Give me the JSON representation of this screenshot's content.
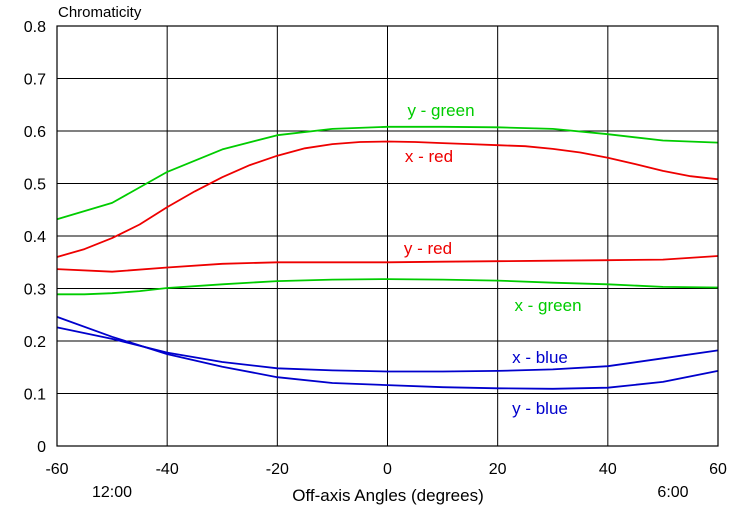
{
  "chart_data": {
    "type": "line",
    "title": "",
    "ylabel": "Chromaticity",
    "xlabel": "Off-axis Angles (degrees)",
    "xlim": [
      -60,
      60
    ],
    "ylim": [
      0,
      0.8
    ],
    "x_ticks": [
      "-60",
      "-40",
      "-20",
      "0",
      "20",
      "40",
      "60"
    ],
    "y_ticks": [
      "0",
      "0.1",
      "0.2",
      "0.3",
      "0.4",
      "0.5",
      "0.6",
      "0.7",
      "0.8"
    ],
    "grid": true,
    "clock_labels": {
      "left": "12:00",
      "right": "6:00"
    },
    "series": [
      {
        "name": "y - green",
        "color": "#00cc00",
        "x": [
          -60,
          -50,
          -40,
          -30,
          -20,
          -10,
          0,
          10,
          20,
          30,
          40,
          50,
          60
        ],
        "y": [
          0.432,
          0.463,
          0.522,
          0.565,
          0.592,
          0.604,
          0.608,
          0.608,
          0.607,
          0.604,
          0.594,
          0.582,
          0.578
        ]
      },
      {
        "name": "x - red",
        "color": "#ee0000",
        "x": [
          -60,
          -55,
          -50,
          -45,
          -40,
          -35,
          -30,
          -25,
          -20,
          -15,
          -10,
          -5,
          0,
          5,
          10,
          15,
          20,
          25,
          30,
          35,
          40,
          45,
          50,
          55,
          60
        ],
        "y": [
          0.36,
          0.375,
          0.396,
          0.422,
          0.455,
          0.485,
          0.512,
          0.535,
          0.553,
          0.567,
          0.575,
          0.579,
          0.58,
          0.579,
          0.577,
          0.575,
          0.573,
          0.571,
          0.566,
          0.559,
          0.549,
          0.537,
          0.524,
          0.514,
          0.508
        ]
      },
      {
        "name": "y - red",
        "color": "#ee0000",
        "x": [
          -60,
          -50,
          -40,
          -30,
          -20,
          -10,
          0,
          10,
          20,
          30,
          40,
          50,
          60
        ],
        "y": [
          0.337,
          0.332,
          0.34,
          0.347,
          0.35,
          0.35,
          0.35,
          0.351,
          0.352,
          0.353,
          0.354,
          0.355,
          0.362
        ]
      },
      {
        "name": "x - green",
        "color": "#00cc00",
        "x": [
          -60,
          -55,
          -50,
          -45,
          -40,
          -30,
          -20,
          -10,
          0,
          10,
          20,
          30,
          40,
          50,
          60
        ],
        "y": [
          0.289,
          0.289,
          0.291,
          0.295,
          0.301,
          0.308,
          0.314,
          0.317,
          0.318,
          0.317,
          0.315,
          0.311,
          0.308,
          0.303,
          0.302
        ]
      },
      {
        "name": "x - blue",
        "color": "#0000cc",
        "x": [
          -60,
          -50,
          -40,
          -30,
          -20,
          -10,
          0,
          10,
          20,
          30,
          40,
          50,
          60
        ],
        "y": [
          0.226,
          0.204,
          0.178,
          0.16,
          0.148,
          0.144,
          0.142,
          0.142,
          0.143,
          0.146,
          0.152,
          0.167,
          0.182
        ]
      },
      {
        "name": "y - blue",
        "color": "#0000cc",
        "x": [
          -60,
          -50,
          -40,
          -30,
          -20,
          -10,
          0,
          10,
          20,
          30,
          40,
          50,
          60
        ],
        "y": [
          0.246,
          0.208,
          0.175,
          0.151,
          0.131,
          0.12,
          0.116,
          0.112,
          0.11,
          0.109,
          0.111,
          0.122,
          0.143
        ]
      }
    ]
  }
}
